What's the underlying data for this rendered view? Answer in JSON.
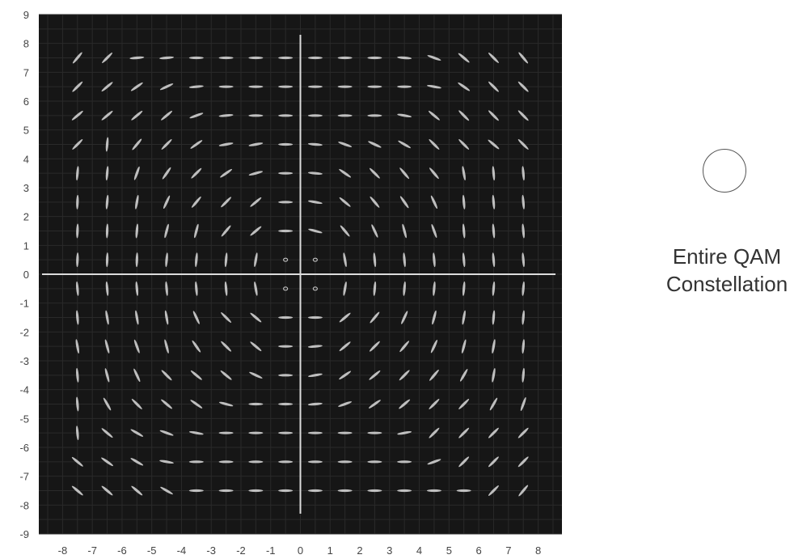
{
  "chart_data": {
    "type": "scatter",
    "title": "",
    "xlabel": "",
    "ylabel": "",
    "xlim": [
      -8.8,
      8.8
    ],
    "ylim": [
      -9,
      9
    ],
    "x_ticks": [
      -8,
      -7,
      -6,
      -5,
      -4,
      -3,
      -2,
      -1,
      0,
      1,
      2,
      3,
      4,
      5,
      6,
      7,
      8
    ],
    "y_ticks": [
      9,
      8,
      7,
      6,
      5,
      4,
      3,
      2,
      1,
      0,
      -1,
      -2,
      -3,
      -4,
      -5,
      -6,
      -7,
      -8,
      -9
    ],
    "grid": true,
    "grid_step": 0.5,
    "axes_at_origin": true,
    "description_of_points": "16x16 QAM constellation clusters at odd-half coordinates; each cluster shown as an elongated ellipse with orientation angle in degrees",
    "x": [
      -7.5,
      -6.5,
      -5.5,
      -4.5,
      -3.5,
      -2.5,
      -1.5,
      -0.5,
      0.5,
      1.5,
      2.5,
      3.5,
      4.5,
      5.5,
      6.5,
      7.5
    ],
    "y": [
      7.5,
      6.5,
      5.5,
      4.5,
      3.5,
      2.5,
      1.5,
      0.5,
      -0.5,
      -1.5,
      -2.5,
      -3.5,
      -4.5,
      -5.5,
      -6.5,
      -7.5
    ],
    "orientation_deg": [
      [
        50,
        45,
        5,
        5,
        0,
        0,
        0,
        0,
        0,
        0,
        0,
        -5,
        -20,
        -40,
        -45,
        -50
      ],
      [
        45,
        40,
        35,
        25,
        5,
        0,
        0,
        0,
        0,
        0,
        0,
        0,
        -10,
        -35,
        -45,
        -45
      ],
      [
        40,
        40,
        40,
        40,
        20,
        5,
        0,
        0,
        0,
        0,
        0,
        -10,
        -40,
        -45,
        -45,
        -45
      ],
      [
        45,
        85,
        50,
        45,
        35,
        10,
        10,
        0,
        -5,
        -20,
        -25,
        -30,
        -45,
        -45,
        -40,
        -45
      ],
      [
        85,
        85,
        70,
        55,
        45,
        35,
        15,
        0,
        -5,
        -35,
        -45,
        -50,
        -50,
        -80,
        -85,
        -85
      ],
      [
        88,
        85,
        80,
        65,
        50,
        45,
        40,
        0,
        -10,
        -40,
        -50,
        -55,
        -65,
        -85,
        -85,
        -85
      ],
      [
        88,
        88,
        85,
        75,
        75,
        50,
        40,
        0,
        -15,
        -50,
        -65,
        -75,
        -70,
        -85,
        -85,
        -85
      ],
      [
        88,
        88,
        88,
        85,
        85,
        85,
        80,
        0,
        0,
        -80,
        -85,
        -85,
        -85,
        -85,
        -85,
        -85
      ],
      [
        -85,
        -85,
        -85,
        -85,
        -85,
        -85,
        -80,
        0,
        0,
        80,
        85,
        85,
        85,
        85,
        85,
        85
      ],
      [
        -85,
        -80,
        -80,
        -80,
        -65,
        -45,
        -40,
        0,
        0,
        40,
        50,
        65,
        75,
        80,
        85,
        85
      ],
      [
        -80,
        -75,
        -70,
        -75,
        -55,
        -45,
        -40,
        0,
        5,
        40,
        45,
        50,
        65,
        75,
        80,
        85
      ],
      [
        -85,
        -75,
        -65,
        -45,
        -40,
        -40,
        -25,
        0,
        10,
        35,
        40,
        45,
        50,
        60,
        80,
        85
      ],
      [
        -85,
        -60,
        -45,
        -40,
        -35,
        -15,
        0,
        0,
        5,
        20,
        35,
        40,
        45,
        45,
        60,
        70
      ],
      [
        -85,
        -40,
        -30,
        -20,
        -10,
        0,
        0,
        0,
        0,
        0,
        0,
        10,
        45,
        45,
        45,
        45
      ],
      [
        -40,
        -35,
        -30,
        -10,
        0,
        0,
        0,
        0,
        0,
        0,
        0,
        0,
        20,
        45,
        45,
        45
      ],
      [
        -40,
        -40,
        -40,
        -30,
        0,
        0,
        0,
        0,
        0,
        0,
        0,
        0,
        0,
        0,
        45,
        50
      ]
    ],
    "point_color": "#d0d0d0",
    "axis_color": "#dcdcdc",
    "background_color": "#161616"
  },
  "annotation": {
    "line1": "Entire QAM",
    "line2": "Constellation",
    "icon": "circle-outline-icon"
  }
}
